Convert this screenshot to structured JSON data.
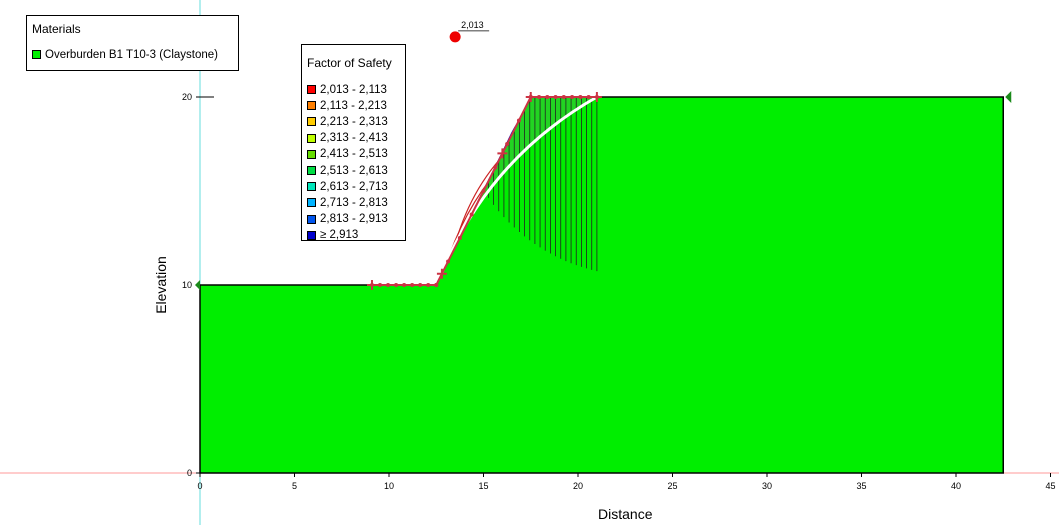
{
  "axes": {
    "xlabel": "Distance",
    "ylabel": "Elevation",
    "x_ticks": [
      "0",
      "5",
      "10",
      "15",
      "20",
      "25",
      "30",
      "35",
      "40",
      "45"
    ],
    "y_ticks": [
      "0",
      "10",
      "20"
    ]
  },
  "materials": {
    "title": "Materials",
    "items": [
      {
        "label": "Overburden B1 T10-3 (Claystone)",
        "color": "#00ee00"
      }
    ]
  },
  "fos_legend": {
    "title": "Factor of Safety",
    "items": [
      {
        "label": "2,013 - 2,113",
        "color": "#ff0000"
      },
      {
        "label": "2,113 - 2,213",
        "color": "#ff7f00"
      },
      {
        "label": "2,213 - 2,313",
        "color": "#ffcc00"
      },
      {
        "label": "2,313 - 2,413",
        "color": "#bfff00"
      },
      {
        "label": "2,413 - 2,513",
        "color": "#66dd00"
      },
      {
        "label": "2,513 - 2,613",
        "color": "#00dd44"
      },
      {
        "label": "2,613 - 2,713",
        "color": "#00e6bb"
      },
      {
        "label": "2,713 - 2,813",
        "color": "#00b3ff"
      },
      {
        "label": "2,813 - 2,913",
        "color": "#0055ee"
      },
      {
        "label": "≥ 2,913",
        "color": "#0000cc"
      }
    ]
  },
  "critical_center": {
    "label": "2,013",
    "x": 13.5,
    "y": 23.2
  },
  "ground_profile": [
    [
      0,
      0
    ],
    [
      0,
      10
    ],
    [
      12.5,
      10
    ],
    [
      17.5,
      20
    ],
    [
      42.5,
      20
    ],
    [
      42.5,
      0
    ]
  ],
  "slope": {
    "toe": [
      12.5,
      10
    ],
    "crest": [
      17.5,
      20
    ]
  },
  "colors": {
    "material_fill": "#00ee00",
    "axis_x": "#ff9999",
    "axis_y": "#66dddd",
    "entry_exit": "#cc3344",
    "critical_surface": "#ffffff",
    "center_marker": "#ee0000"
  }
}
